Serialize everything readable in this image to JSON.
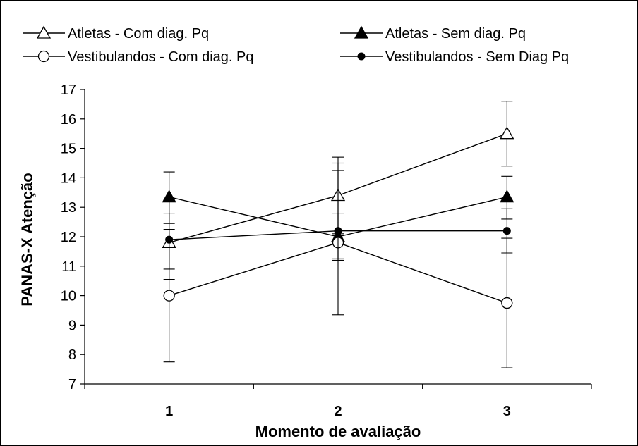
{
  "chart_data": {
    "type": "line",
    "title": "",
    "xlabel": "Momento de avaliação",
    "ylabel": "PANAS-X Atenção",
    "categories": [
      "1",
      "2",
      "3"
    ],
    "ylim": [
      7,
      17
    ],
    "yticks": [
      "7",
      "8",
      "9",
      "10",
      "11",
      "12",
      "13",
      "14",
      "15",
      "16",
      "17"
    ],
    "grid": false,
    "legend_position": "top",
    "series": [
      {
        "name": "Atletas - Com diag. Pq",
        "marker": "open-triangle",
        "values": [
          11.8,
          13.4,
          15.5
        ],
        "error_low": [
          10.9,
          12.1,
          14.4
        ],
        "error_high": [
          12.8,
          14.7,
          16.6
        ]
      },
      {
        "name": "Atletas - Sem diag. Pq",
        "marker": "filled-triangle",
        "values": [
          13.35,
          12.0,
          13.35
        ],
        "error_low": [
          12.45,
          11.2,
          12.6
        ],
        "error_high": [
          14.2,
          12.8,
          14.05
        ]
      },
      {
        "name": "Vestibulandos - Com diag. Pq",
        "marker": "open-circle",
        "values": [
          10.0,
          11.8,
          9.75
        ],
        "error_low": [
          7.75,
          9.35,
          7.55
        ],
        "error_high": [
          12.25,
          14.25,
          11.95
        ]
      },
      {
        "name": "Vestibulandos - Sem Diag Pq",
        "marker": "filled-circle",
        "values": [
          11.9,
          12.2,
          12.2
        ],
        "error_low": [
          10.55,
          11.25,
          11.45
        ],
        "error_high": [
          13.25,
          14.5,
          12.95
        ]
      }
    ]
  }
}
